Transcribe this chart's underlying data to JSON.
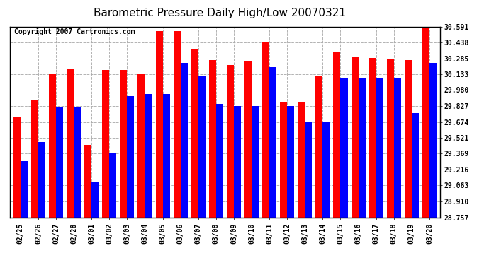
{
  "title": "Barometric Pressure Daily High/Low 20070321",
  "copyright": "Copyright 2007 Cartronics.com",
  "dates": [
    "02/25",
    "02/26",
    "02/27",
    "02/28",
    "03/01",
    "03/02",
    "03/03",
    "03/04",
    "03/05",
    "03/06",
    "03/07",
    "03/08",
    "03/09",
    "03/10",
    "03/11",
    "03/12",
    "03/13",
    "03/14",
    "03/15",
    "03/16",
    "03/17",
    "03/18",
    "03/19",
    "03/20"
  ],
  "highs": [
    29.72,
    29.88,
    30.13,
    30.18,
    29.45,
    30.17,
    30.17,
    30.13,
    30.55,
    30.55,
    30.37,
    30.27,
    30.22,
    30.26,
    30.44,
    29.87,
    29.86,
    30.12,
    30.35,
    30.3,
    30.29,
    30.28,
    30.27,
    30.59
  ],
  "lows": [
    29.3,
    29.48,
    29.82,
    29.82,
    29.09,
    29.37,
    29.92,
    29.94,
    29.94,
    30.24,
    30.12,
    29.85,
    29.83,
    29.83,
    30.2,
    29.83,
    29.68,
    29.68,
    30.09,
    30.1,
    30.1,
    30.1,
    29.76,
    30.24
  ],
  "yticks": [
    28.757,
    28.91,
    29.063,
    29.216,
    29.369,
    29.521,
    29.674,
    29.827,
    29.98,
    30.133,
    30.285,
    30.438,
    30.591
  ],
  "ymin": 28.757,
  "ymax": 30.591,
  "high_color": "#FF0000",
  "low_color": "#0000FF",
  "bar_width": 0.4,
  "bg_color": "#FFFFFF",
  "grid_color": "#AAAAAA",
  "title_fontsize": 11,
  "tick_fontsize": 7,
  "copyright_fontsize": 7
}
